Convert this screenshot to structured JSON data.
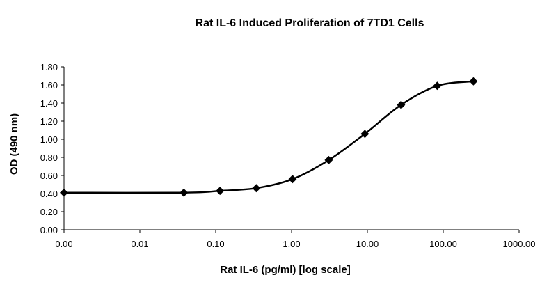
{
  "chart_data": {
    "type": "scatter",
    "title": "Rat IL-6 Induced Proliferation of 7TD1 Cells",
    "xlabel": "Rat IL-6 (pg/ml) [log scale]",
    "ylabel": "OD (490 nm)",
    "x_scale": "log",
    "xlim": [
      0.001,
      1000
    ],
    "ylim": [
      0,
      1.8
    ],
    "x_ticks": [
      0.001,
      0.01,
      0.1,
      1,
      10,
      100,
      1000
    ],
    "x_tick_labels": [
      "0.00",
      "0.01",
      "0.10",
      "1.00",
      "10.00",
      "100.00",
      "1000.00"
    ],
    "y_ticks": [
      0,
      0.2,
      0.4,
      0.6,
      0.8,
      1.0,
      1.2,
      1.4,
      1.6,
      1.8
    ],
    "y_tick_labels": [
      "0.00",
      "0.20",
      "0.40",
      "0.60",
      "0.80",
      "1.00",
      "1.20",
      "1.40",
      "1.60",
      "1.80"
    ],
    "grid": false,
    "legend": "none",
    "marker": "diamond",
    "curve": "smooth",
    "color": "#000000",
    "series": [
      {
        "x": [
          0.001,
          0.038,
          0.114,
          0.343,
          1.03,
          3.09,
          9.26,
          27.8,
          83.3,
          250
        ],
        "y": [
          0.41,
          0.41,
          0.43,
          0.46,
          0.56,
          0.77,
          1.06,
          1.38,
          1.59,
          1.64
        ]
      }
    ]
  }
}
